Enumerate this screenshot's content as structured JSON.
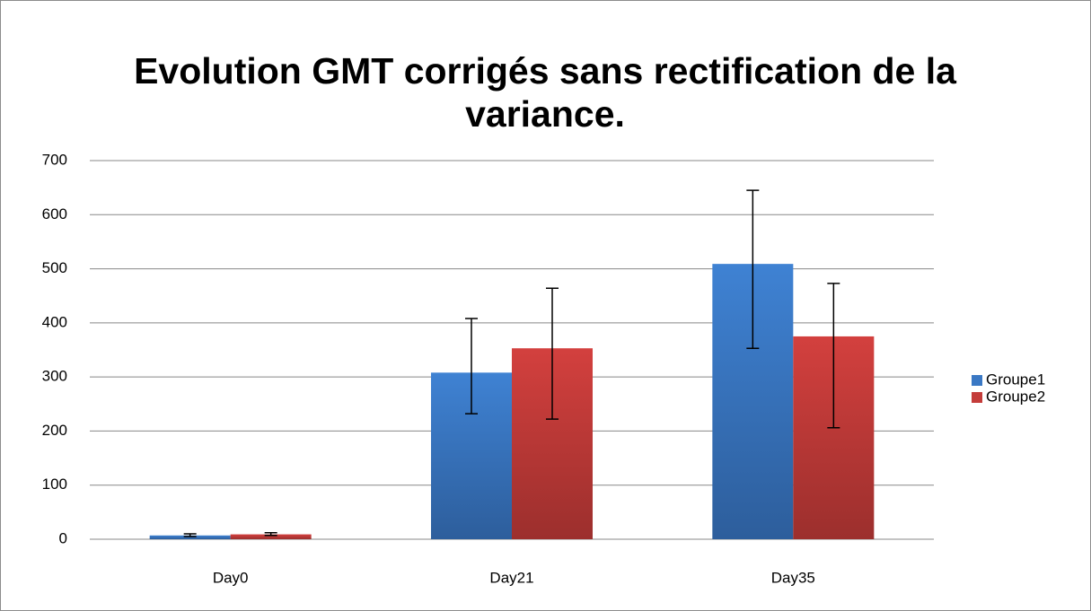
{
  "chart_data": {
    "type": "bar",
    "title": "Evolution GMT corrigés sans rectification de la variance.",
    "categories": [
      "Day0",
      "Day21",
      "Day35"
    ],
    "series": [
      {
        "name": "Groupe1",
        "color": "#3a78c4",
        "values": [
          7,
          308,
          509
        ],
        "error_plus": [
          3,
          100,
          136
        ],
        "error_minus": [
          2,
          76,
          156
        ]
      },
      {
        "name": "Groupe2",
        "color": "#c43c3a",
        "values": [
          9,
          353,
          375
        ],
        "error_plus": [
          3,
          111,
          98
        ],
        "error_minus": [
          2,
          131,
          169
        ]
      }
    ],
    "ylim": [
      0,
      700
    ],
    "yticks": [
      0,
      100,
      200,
      300,
      400,
      500,
      600,
      700
    ],
    "grid": true,
    "legend": "right"
  }
}
